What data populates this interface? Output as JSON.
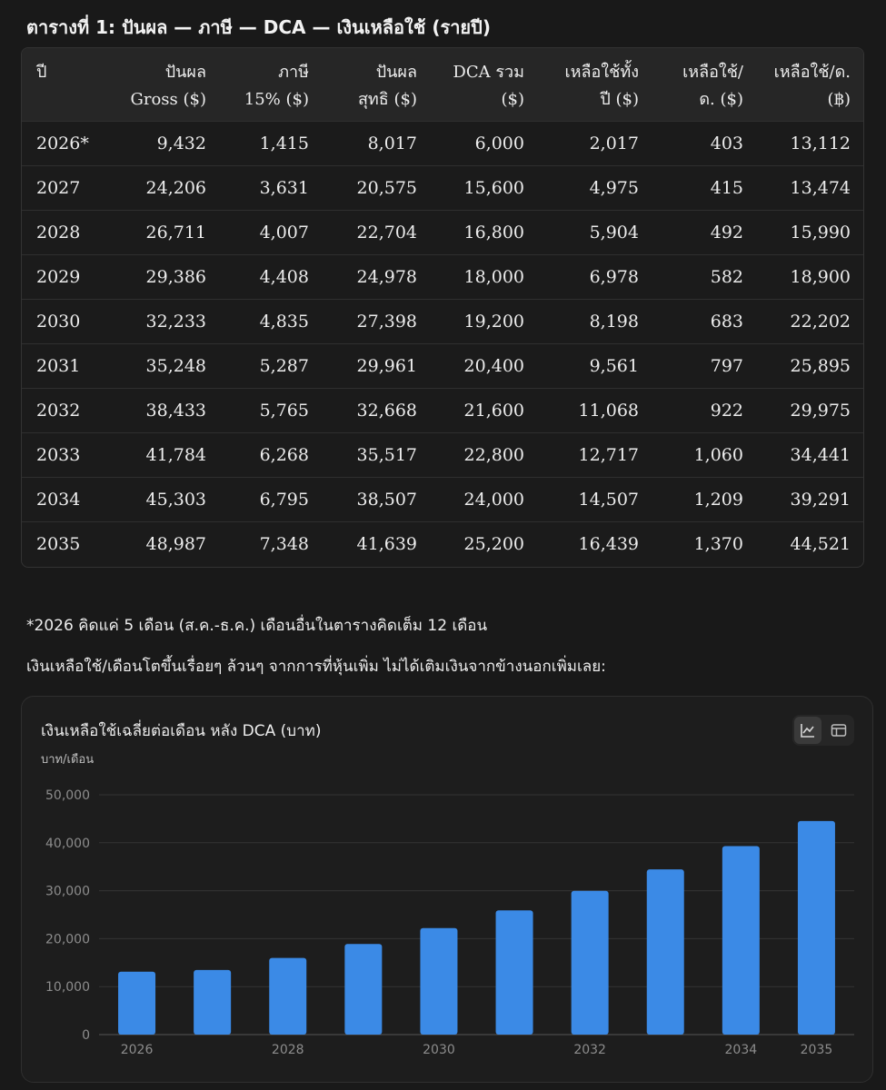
{
  "heading": "ตารางที่ 1: ปันผล — ภาษี — DCA — เงินเหลือใช้ (รายปี)",
  "table": {
    "headers": [
      [
        "ปี",
        ""
      ],
      [
        "ปันผล",
        "Gross ($)"
      ],
      [
        "ภาษี",
        "15% ($)"
      ],
      [
        "ปันผล",
        "สุทธิ ($)"
      ],
      [
        "DCA รวม",
        "($)"
      ],
      [
        "เหลือใช้ทั้ง",
        "ปี ($)"
      ],
      [
        "เหลือใช้/",
        "ด. ($)"
      ],
      [
        "เหลือใช้/ด.",
        "(฿)"
      ]
    ],
    "rows": [
      [
        "2026*",
        "9,432",
        "1,415",
        "8,017",
        "6,000",
        "2,017",
        "403",
        "13,112"
      ],
      [
        "2027",
        "24,206",
        "3,631",
        "20,575",
        "15,600",
        "4,975",
        "415",
        "13,474"
      ],
      [
        "2028",
        "26,711",
        "4,007",
        "22,704",
        "16,800",
        "5,904",
        "492",
        "15,990"
      ],
      [
        "2029",
        "29,386",
        "4,408",
        "24,978",
        "18,000",
        "6,978",
        "582",
        "18,900"
      ],
      [
        "2030",
        "32,233",
        "4,835",
        "27,398",
        "19,200",
        "8,198",
        "683",
        "22,202"
      ],
      [
        "2031",
        "35,248",
        "5,287",
        "29,961",
        "20,400",
        "9,561",
        "797",
        "25,895"
      ],
      [
        "2032",
        "38,433",
        "5,765",
        "32,668",
        "21,600",
        "11,068",
        "922",
        "29,975"
      ],
      [
        "2033",
        "41,784",
        "6,268",
        "35,517",
        "22,800",
        "12,717",
        "1,060",
        "34,441"
      ],
      [
        "2034",
        "45,303",
        "6,795",
        "38,507",
        "24,000",
        "14,507",
        "1,209",
        "39,291"
      ],
      [
        "2035",
        "48,987",
        "7,348",
        "41,639",
        "25,200",
        "16,439",
        "1,370",
        "44,521"
      ]
    ]
  },
  "notes": {
    "footnote": "*2026 คิดแค่ 5 เดือน (ส.ค.-ธ.ค.) เดือนอื่นในตารางคิดเต็ม 12 เดือน",
    "summary": "เงินเหลือใช้/เดือนโตขึ้นเรื่อยๆ ล้วนๆ จากการที่หุ้นเพิ่ม ไม่ได้เติมเงินจากข้างนอกเพิ่มเลย:"
  },
  "chart_card": {
    "icons": [
      "line-chart-icon",
      "table-view-icon"
    ]
  },
  "chart_data": {
    "type": "bar",
    "title": "เงินเหลือใช้เฉลี่ยต่อเดือน หลัง DCA (บาท)",
    "ylabel": "บาท/เดือน",
    "xlabel": "",
    "categories": [
      "2026",
      "2027",
      "2028",
      "2029",
      "2030",
      "2031",
      "2032",
      "2033",
      "2034",
      "2035"
    ],
    "x_tick_labels": [
      "2026",
      "",
      "2028",
      "",
      "2030",
      "",
      "2032",
      "",
      "2034",
      "2035"
    ],
    "values": [
      13112,
      13474,
      15990,
      18900,
      22202,
      25895,
      29975,
      34441,
      39291,
      44521
    ],
    "ylim": [
      0,
      50000
    ],
    "y_ticks": [
      "0",
      "10,000",
      "20,000",
      "30,000",
      "40,000",
      "50,000"
    ],
    "grid": true,
    "bar_color": "#3b8ae6"
  }
}
